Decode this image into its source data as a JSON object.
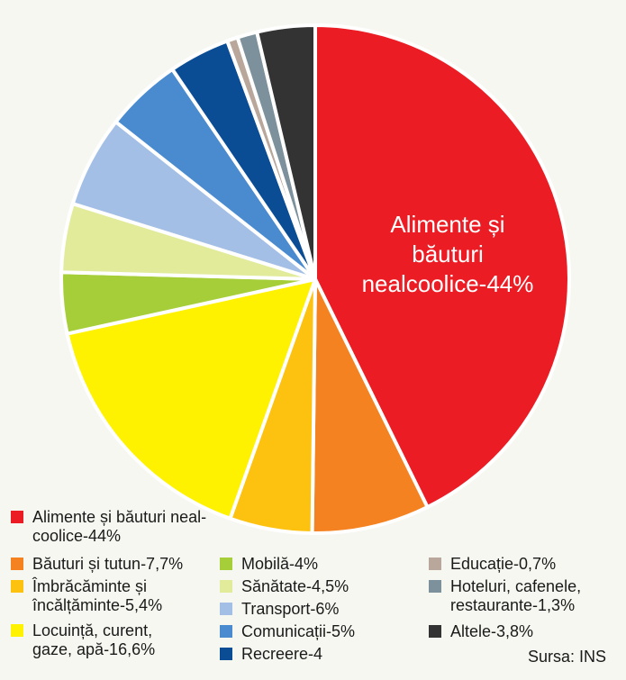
{
  "chart_data": {
    "type": "pie",
    "slices": [
      {
        "label": "Alimente și băuturi nealcoolice",
        "value": 44,
        "color": "#ec1c24"
      },
      {
        "label": "Băuturi și tutun",
        "value": 7.7,
        "color": "#f58220"
      },
      {
        "label": "Îmbrăcăminte și încălțăminte",
        "value": 5.4,
        "color": "#fdc20f"
      },
      {
        "label": "Locuință, curent, gaze, apă",
        "value": 16.6,
        "color": "#fff200"
      },
      {
        "label": "Mobilă",
        "value": 4,
        "color": "#a6ce39"
      },
      {
        "label": "Sănătate",
        "value": 4.5,
        "color": "#e2eb9a"
      },
      {
        "label": "Transport",
        "value": 6,
        "color": "#a3bfe6"
      },
      {
        "label": "Comunicații",
        "value": 5,
        "color": "#4a8bd0"
      },
      {
        "label": "Recreere",
        "value": 4,
        "color": "#0b4d95"
      },
      {
        "label": "Educație",
        "value": 0.7,
        "color": "#b8a79a"
      },
      {
        "label": "Hoteluri, cafenele, restaurante",
        "value": 1.3,
        "color": "#7c919c"
      },
      {
        "label": "Altele",
        "value": 3.8,
        "color": "#333333"
      }
    ],
    "in_slice_label": "Alimente și băuturi nealcoolice-44%",
    "in_slice_lines": [
      "Alimente și",
      "băuturi",
      "nealcoolice-44%"
    ]
  },
  "legend": {
    "col1": [
      {
        "lines": [
          "Alimente și băuturi neal-",
          "coolice-44%"
        ],
        "color": "#ec1c24"
      },
      {
        "lines": [
          "Băuturi și tutun-7,7%"
        ],
        "color": "#f58220"
      },
      {
        "lines": [
          "Îmbrăcăminte și",
          "încălțăminte-5,4%"
        ],
        "color": "#fdc20f"
      },
      {
        "lines": [
          "Locuință, curent,",
          "gaze, apă-16,6%"
        ],
        "color": "#fff200"
      }
    ],
    "col2": [
      {
        "lines": [
          "Mobilă-4%"
        ],
        "color": "#a6ce39"
      },
      {
        "lines": [
          "Sănătate-4,5%"
        ],
        "color": "#e2eb9a"
      },
      {
        "lines": [
          "Transport-6%"
        ],
        "color": "#a3bfe6"
      },
      {
        "lines": [
          "Comunicații-5%"
        ],
        "color": "#4a8bd0"
      },
      {
        "lines": [
          "Recreere-4"
        ],
        "color": "#0b4d95"
      }
    ],
    "col3": [
      {
        "lines": [
          "Educație-0,7%"
        ],
        "color": "#b8a79a"
      },
      {
        "lines": [
          "Hoteluri, cafenele,",
          "restaurante-1,3%"
        ],
        "color": "#7c919c"
      },
      {
        "lines": [
          "Altele-3,8%"
        ],
        "color": "#333333"
      }
    ]
  },
  "source": "Sursa: INS"
}
